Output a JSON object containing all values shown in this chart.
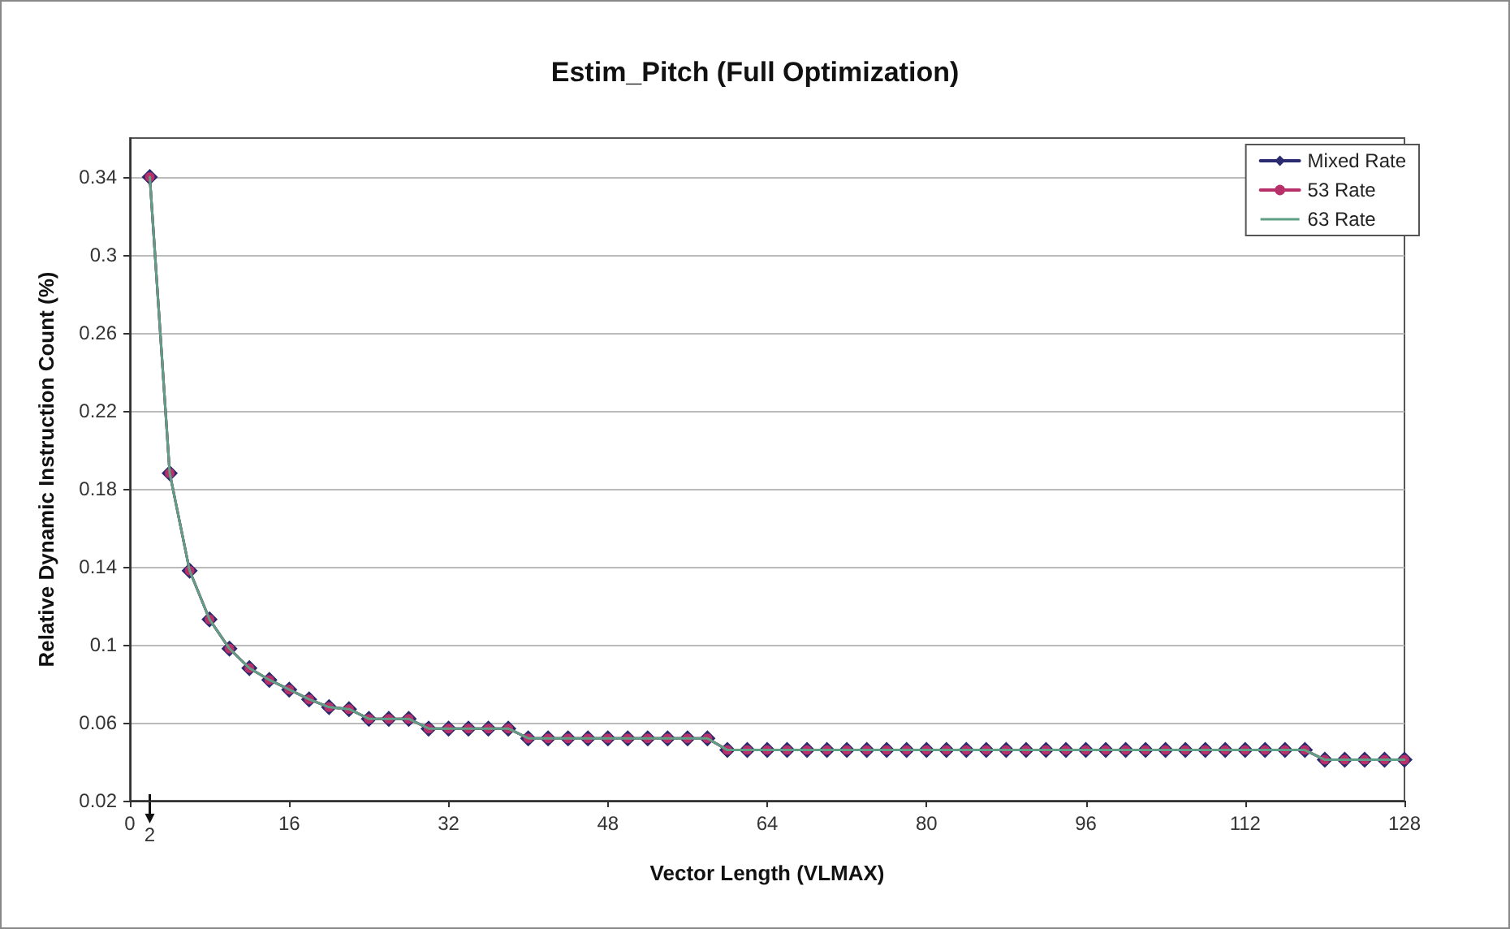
{
  "chart_data": {
    "type": "line",
    "title": "Estim_Pitch (Full Optimization)",
    "xlabel": "Vector Length (VLMAX)",
    "ylabel": "Relative Dynamic Instruction Count (%)",
    "x": [
      2,
      4,
      6,
      8,
      10,
      12,
      14,
      16,
      18,
      20,
      22,
      24,
      26,
      28,
      30,
      32,
      34,
      36,
      38,
      40,
      42,
      44,
      46,
      48,
      50,
      52,
      54,
      56,
      58,
      60,
      62,
      64,
      66,
      68,
      70,
      72,
      74,
      76,
      78,
      80,
      82,
      84,
      86,
      88,
      90,
      92,
      94,
      96,
      98,
      100,
      102,
      104,
      106,
      108,
      110,
      112,
      114,
      116,
      118,
      120,
      122,
      124,
      126,
      128
    ],
    "series": [
      {
        "name": "Mixed Rate",
        "color": "#2a2a6e",
        "marker": "diamond",
        "values": [
          0.34,
          0.188,
          0.138,
          0.113,
          0.098,
          0.088,
          0.082,
          0.077,
          0.072,
          0.068,
          0.067,
          0.062,
          0.062,
          0.062,
          0.057,
          0.057,
          0.057,
          0.057,
          0.057,
          0.052,
          0.052,
          0.052,
          0.052,
          0.052,
          0.052,
          0.052,
          0.052,
          0.052,
          0.052,
          0.046,
          0.046,
          0.046,
          0.046,
          0.046,
          0.046,
          0.046,
          0.046,
          0.046,
          0.046,
          0.046,
          0.046,
          0.046,
          0.046,
          0.046,
          0.046,
          0.046,
          0.046,
          0.046,
          0.046,
          0.046,
          0.046,
          0.046,
          0.046,
          0.046,
          0.046,
          0.046,
          0.046,
          0.046,
          0.046,
          0.041,
          0.041,
          0.041,
          0.041,
          0.041
        ]
      },
      {
        "name": "53 Rate",
        "color": "#b8306a",
        "marker": "circle",
        "values": [
          0.34,
          0.188,
          0.138,
          0.113,
          0.098,
          0.088,
          0.082,
          0.077,
          0.072,
          0.068,
          0.067,
          0.062,
          0.062,
          0.062,
          0.057,
          0.057,
          0.057,
          0.057,
          0.057,
          0.052,
          0.052,
          0.052,
          0.052,
          0.052,
          0.052,
          0.052,
          0.052,
          0.052,
          0.052,
          0.046,
          0.046,
          0.046,
          0.046,
          0.046,
          0.046,
          0.046,
          0.046,
          0.046,
          0.046,
          0.046,
          0.046,
          0.046,
          0.046,
          0.046,
          0.046,
          0.046,
          0.046,
          0.046,
          0.046,
          0.046,
          0.046,
          0.046,
          0.046,
          0.046,
          0.046,
          0.046,
          0.046,
          0.046,
          0.046,
          0.041,
          0.041,
          0.041,
          0.041,
          0.041
        ]
      },
      {
        "name": "63 Rate",
        "color": "#5f9f86",
        "marker": "none",
        "values": [
          0.34,
          0.188,
          0.138,
          0.113,
          0.098,
          0.088,
          0.082,
          0.077,
          0.072,
          0.068,
          0.067,
          0.062,
          0.062,
          0.062,
          0.057,
          0.057,
          0.057,
          0.057,
          0.057,
          0.052,
          0.052,
          0.052,
          0.052,
          0.052,
          0.052,
          0.052,
          0.052,
          0.052,
          0.052,
          0.046,
          0.046,
          0.046,
          0.046,
          0.046,
          0.046,
          0.046,
          0.046,
          0.046,
          0.046,
          0.046,
          0.046,
          0.046,
          0.046,
          0.046,
          0.046,
          0.046,
          0.046,
          0.046,
          0.046,
          0.046,
          0.046,
          0.046,
          0.046,
          0.046,
          0.046,
          0.046,
          0.046,
          0.046,
          0.046,
          0.041,
          0.041,
          0.041,
          0.041,
          0.041
        ]
      }
    ],
    "xlim": [
      0,
      128
    ],
    "xticks": [
      0,
      16,
      32,
      48,
      64,
      80,
      96,
      112,
      128
    ],
    "annotations": [
      "2"
    ],
    "ylim": [
      0.02,
      0.36
    ],
    "yticks": [
      0.02,
      0.06,
      0.1,
      0.14,
      0.18,
      0.22,
      0.26,
      0.3,
      0.34
    ],
    "grid": "y",
    "legend": "top right",
    "line_style": "solid"
  }
}
